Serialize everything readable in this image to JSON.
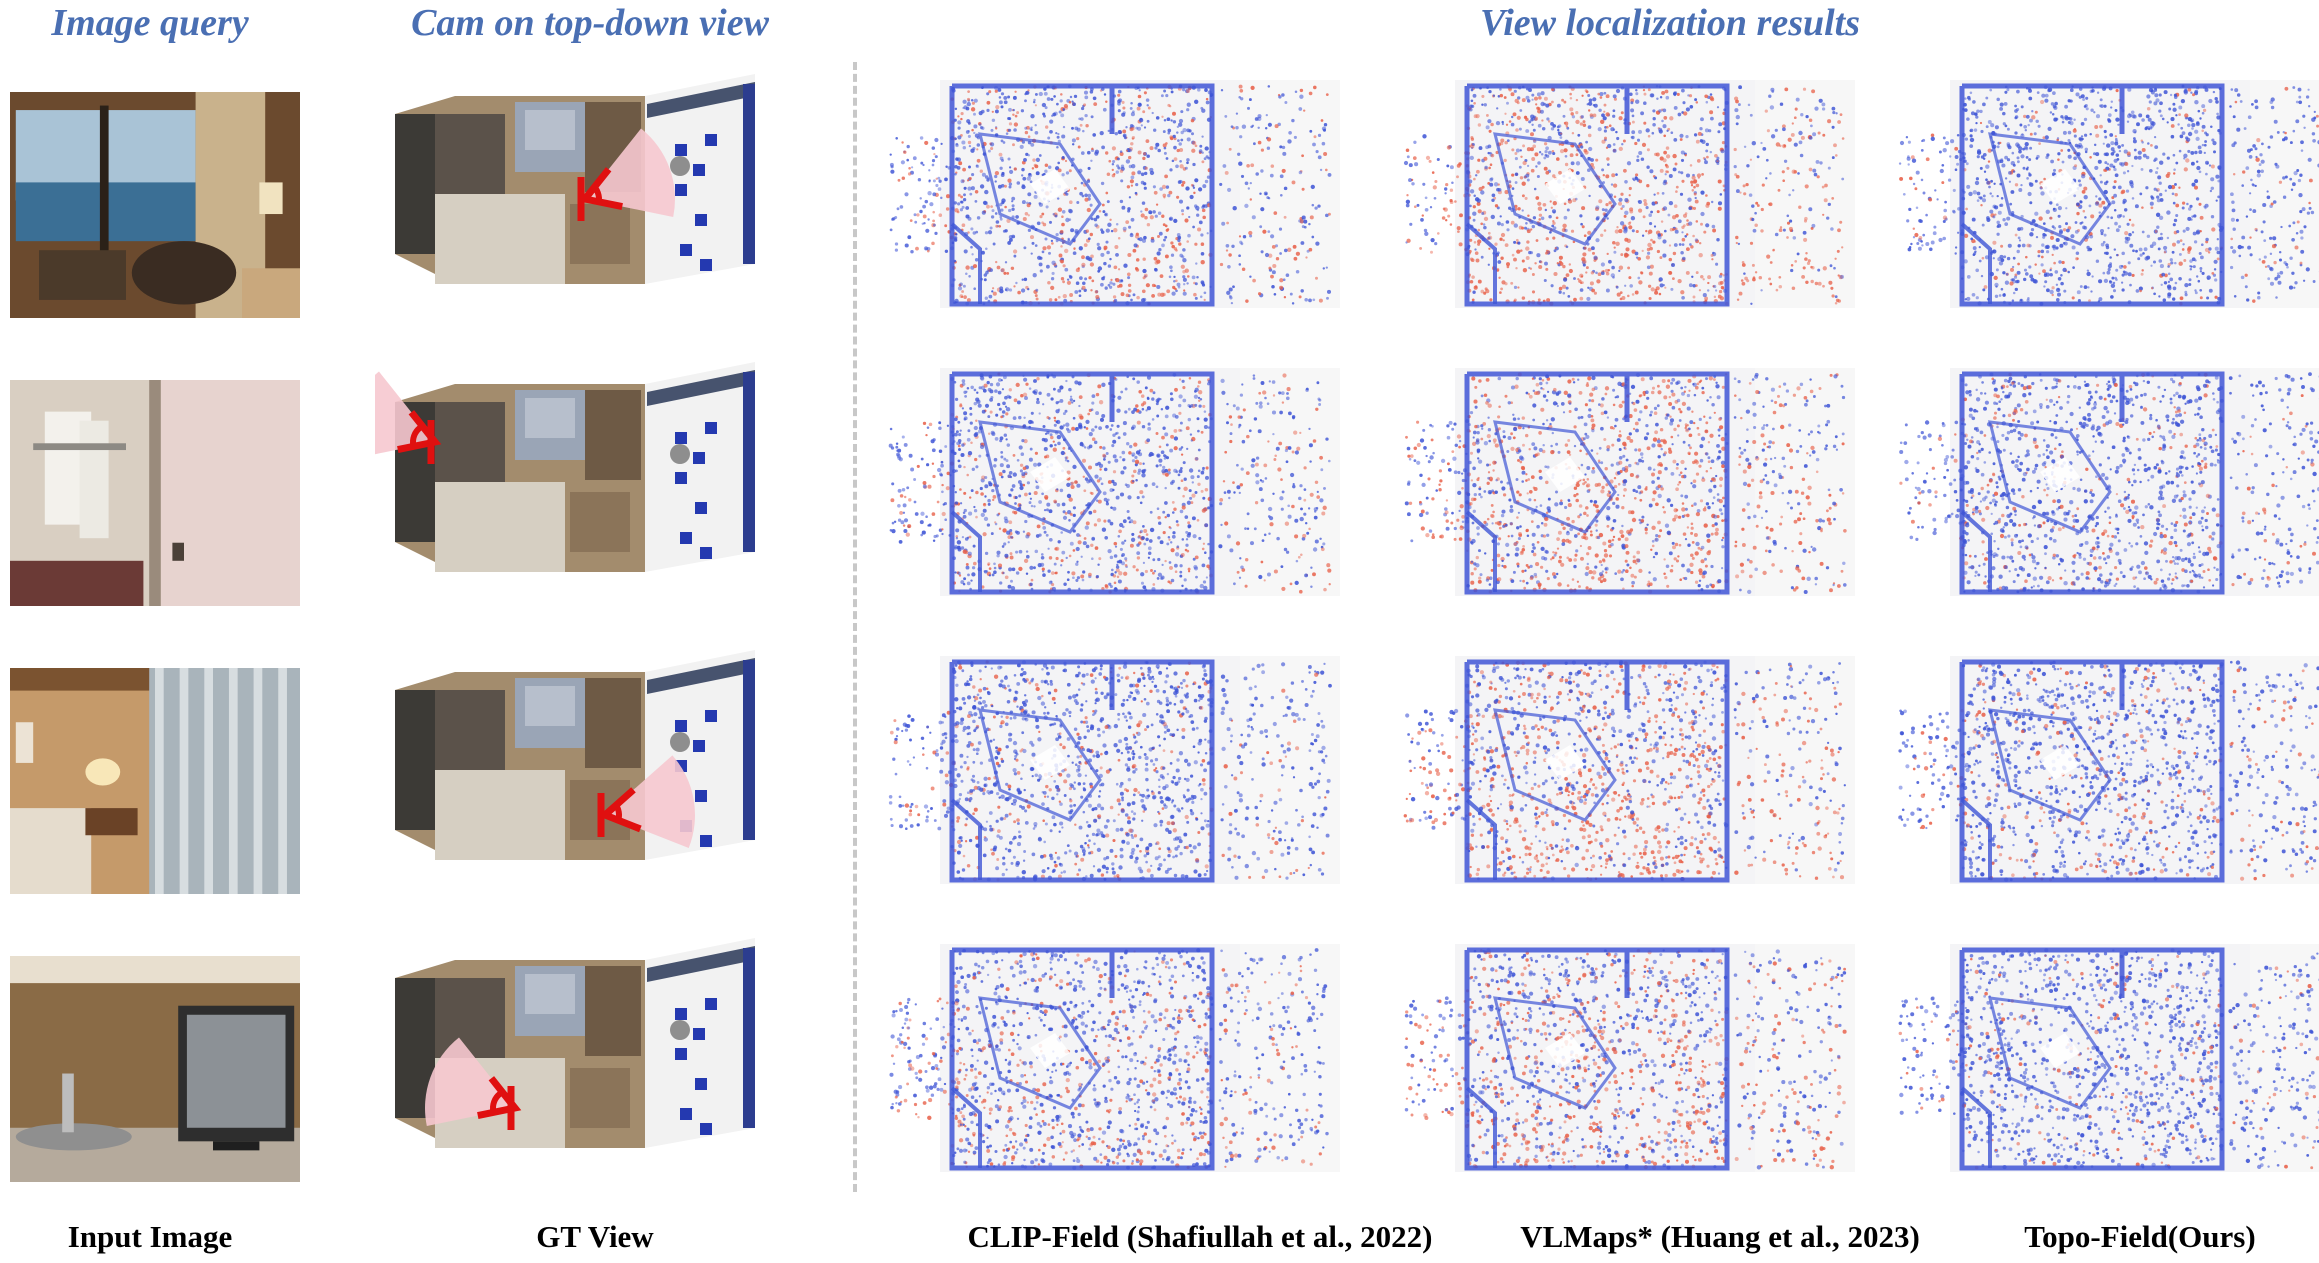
{
  "headers": {
    "image_query": "Image query",
    "cam_topdown": "Cam on top-down view",
    "view_loc": "View localization results"
  },
  "captions": {
    "input_image": "Input Image",
    "gt_view": "GT View",
    "clip_field": "CLIP-Field (Shafiullah et al., 2022)",
    "vlmaps": "VLMaps* (Huang et al., 2023)",
    "topo_field": "Topo-Field(Ours)"
  },
  "rows": [
    {
      "query": "balcony-sea-view-photo",
      "cam_fov": "right-center",
      "red_fraction": {
        "clip": 0.35,
        "vlmaps": 0.6,
        "topo": 0.15
      }
    },
    {
      "query": "bathroom-towel-rack-photo",
      "cam_fov": "left-top",
      "red_fraction": {
        "clip": 0.3,
        "vlmaps": 0.55,
        "topo": 0.2
      }
    },
    {
      "query": "bedroom-curtain-lamp-photo",
      "cam_fov": "right-bottom",
      "red_fraction": {
        "clip": 0.2,
        "vlmaps": 0.55,
        "topo": 0.2
      }
    },
    {
      "query": "sink-and-tv-photo",
      "cam_fov": "left-bottom",
      "red_fraction": {
        "clip": 0.3,
        "vlmaps": 0.5,
        "topo": 0.15
      }
    }
  ],
  "colors": {
    "header": "#4a6fb3",
    "point_blue": "#3f55d6",
    "point_red": "#e8624b",
    "cam_marker": "#e01010",
    "fov_fill": "#f6c8cf"
  }
}
